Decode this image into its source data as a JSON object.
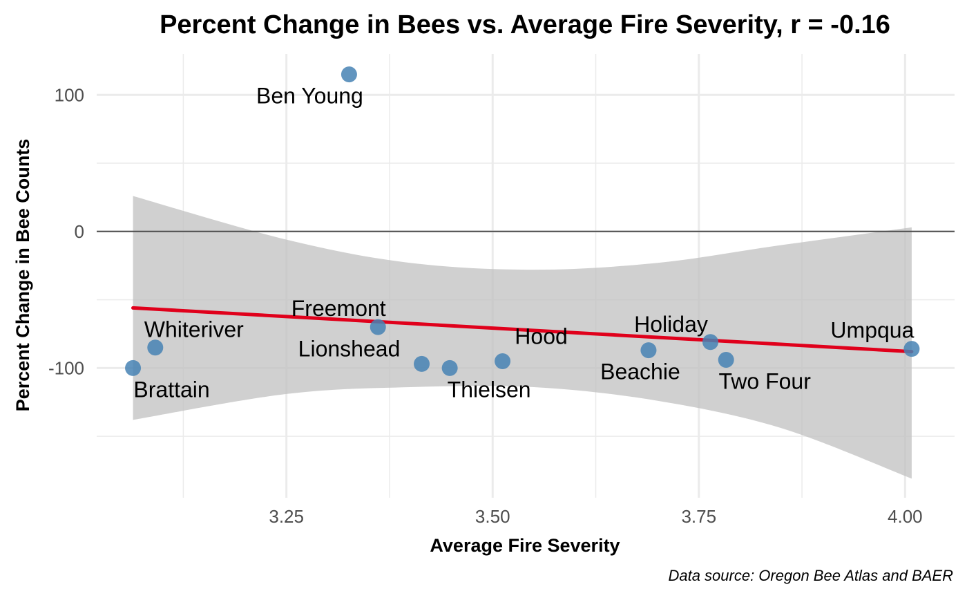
{
  "chart_data": {
    "type": "scatter",
    "title": "Percent Change in Bees vs. Average Fire Severity, r = -0.16",
    "xlabel": "Average Fire Severity",
    "ylabel": "Percent Change in Bee Counts",
    "caption": "Data source: Oregon Bee Atlas and BAER",
    "xlim": [
      3.02,
      4.06
    ],
    "ylim": [
      -195,
      130
    ],
    "x_ticks": [
      3.25,
      3.5,
      3.75,
      4.0
    ],
    "x_tick_labels": [
      "3.25",
      "3.50",
      "3.75",
      "4.00"
    ],
    "y_ticks": [
      -100,
      0,
      100
    ],
    "y_tick_labels": [
      "-100",
      "0",
      "100"
    ],
    "grid": true,
    "reference_line_y": 0,
    "points": [
      {
        "label": "Ben Young",
        "x": 3.326,
        "y": 115
      },
      {
        "label": "Brattain",
        "x": 3.064,
        "y": -100
      },
      {
        "label": "Whiteriver",
        "x": 3.091,
        "y": -85
      },
      {
        "label": "Freemont",
        "x": 3.361,
        "y": -70
      },
      {
        "label": "Lionshead",
        "x": 3.414,
        "y": -97
      },
      {
        "label": "Thielsen",
        "x": 3.448,
        "y": -100
      },
      {
        "label": "Hood",
        "x": 3.512,
        "y": -95
      },
      {
        "label": "Beachie",
        "x": 3.689,
        "y": -87
      },
      {
        "label": "Holiday",
        "x": 3.764,
        "y": -81
      },
      {
        "label": "Two Four",
        "x": 3.783,
        "y": -94
      },
      {
        "label": "Umpqua",
        "x": 4.008,
        "y": -86
      }
    ],
    "fit_line": {
      "x": [
        3.064,
        4.008
      ],
      "y": [
        -56,
        -88
      ]
    },
    "confidence_band": {
      "x": [
        3.064,
        3.25,
        3.4,
        3.55,
        3.7,
        3.85,
        4.008
      ],
      "upper": [
        26,
        -6,
        -23,
        -28,
        -23,
        -10,
        3
      ],
      "lower": [
        -138,
        -119,
        -114,
        -114,
        -124,
        -144,
        -181
      ]
    },
    "colors": {
      "point": "#4682b4",
      "fit_line": "#e0001b",
      "band": "#bebebe",
      "grid": "#ebebeb",
      "reference_line": "#4d4d4d"
    }
  }
}
